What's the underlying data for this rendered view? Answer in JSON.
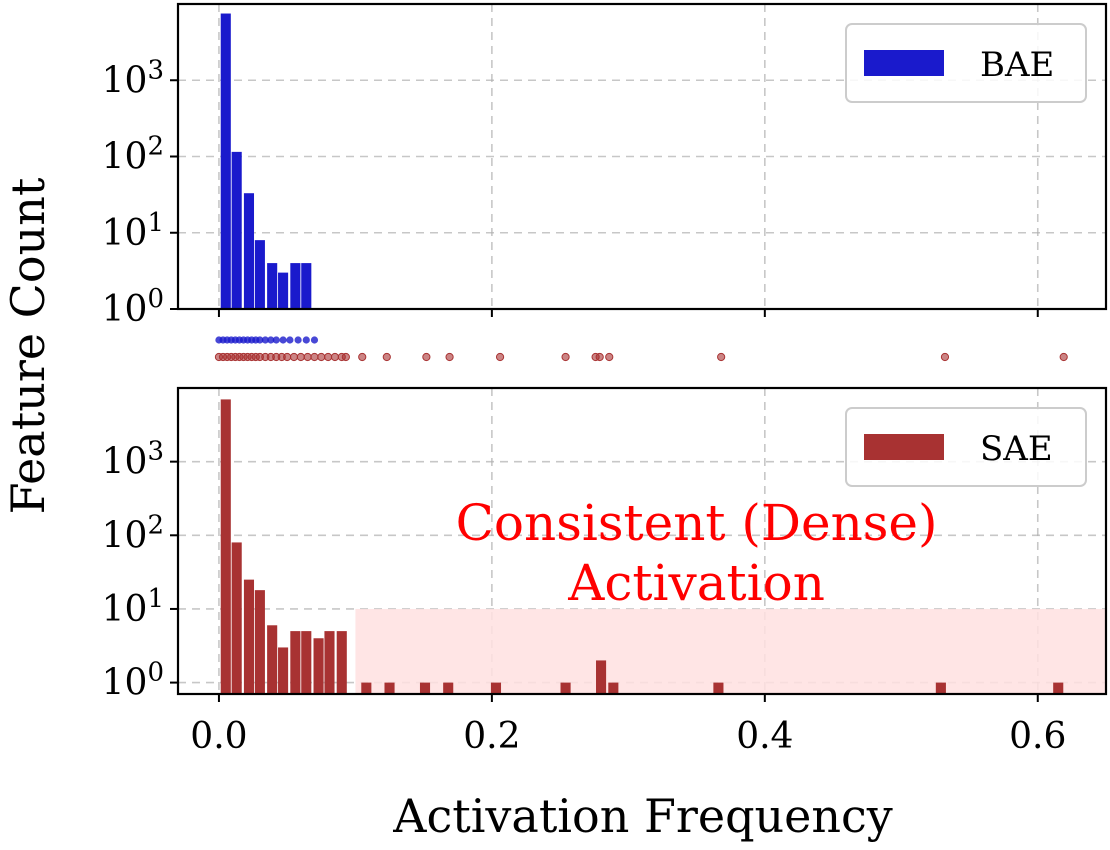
{
  "chart_data": {
    "type": "bar",
    "ylabel": "Feature Count",
    "xlabel": "Activation Frequency",
    "x_ticks": [
      0.0,
      0.2,
      0.4,
      0.6
    ],
    "x_tick_labels": [
      "0.0",
      "0.2",
      "0.4",
      "0.6"
    ],
    "xlim": [
      -0.03,
      0.65
    ],
    "y_scale": "log",
    "y_tick_exponents": [
      0,
      1,
      2,
      3
    ],
    "y_tick_base": "10",
    "bin_width": 0.0085,
    "colors": {
      "bae": "#1a1acc",
      "sae": "#a83232",
      "annotation": "#ff0000",
      "shade": "#ffe0e0"
    },
    "panels": [
      {
        "name": "bae",
        "legend": "BAE",
        "color_key": "bae",
        "ylim": [
          1,
          10000
        ],
        "bars": [
          {
            "x": 0.005,
            "count": 7500
          },
          {
            "x": 0.013,
            "count": 115
          },
          {
            "x": 0.022,
            "count": 33
          },
          {
            "x": 0.03,
            "count": 8
          },
          {
            "x": 0.039,
            "count": 4
          },
          {
            "x": 0.047,
            "count": 3
          },
          {
            "x": 0.056,
            "count": 4
          },
          {
            "x": 0.064,
            "count": 4
          }
        ]
      },
      {
        "name": "sae",
        "legend": "SAE",
        "color_key": "sae",
        "ylim": [
          0.7,
          10000
        ],
        "bars": [
          {
            "x": 0.005,
            "count": 7000
          },
          {
            "x": 0.013,
            "count": 80
          },
          {
            "x": 0.022,
            "count": 25
          },
          {
            "x": 0.03,
            "count": 18
          },
          {
            "x": 0.039,
            "count": 6
          },
          {
            "x": 0.047,
            "count": 3
          },
          {
            "x": 0.056,
            "count": 5
          },
          {
            "x": 0.064,
            "count": 5
          },
          {
            "x": 0.073,
            "count": 4
          },
          {
            "x": 0.081,
            "count": 5
          },
          {
            "x": 0.09,
            "count": 5
          },
          {
            "x": 0.108,
            "count": 1
          },
          {
            "x": 0.125,
            "count": 1
          },
          {
            "x": 0.151,
            "count": 1
          },
          {
            "x": 0.168,
            "count": 1
          },
          {
            "x": 0.203,
            "count": 1
          },
          {
            "x": 0.254,
            "count": 1
          },
          {
            "x": 0.28,
            "count": 2
          },
          {
            "x": 0.289,
            "count": 1
          },
          {
            "x": 0.366,
            "count": 1
          },
          {
            "x": 0.529,
            "count": 1
          },
          {
            "x": 0.615,
            "count": 1
          }
        ],
        "shaded_region": {
          "x": [
            0.1,
            0.65
          ],
          "y": [
            0.7,
            10
          ]
        },
        "annotation": {
          "lines": [
            "Consistent (Dense)",
            "Activation"
          ],
          "x": 0.35
        }
      }
    ],
    "strip": {
      "bae_points": [
        0.0,
        0.003,
        0.006,
        0.009,
        0.012,
        0.015,
        0.018,
        0.021,
        0.024,
        0.027,
        0.03,
        0.034,
        0.038,
        0.042,
        0.047,
        0.052,
        0.058,
        0.064,
        0.07
      ],
      "sae_points": [
        0.0,
        0.003,
        0.006,
        0.009,
        0.012,
        0.015,
        0.018,
        0.021,
        0.024,
        0.027,
        0.03,
        0.034,
        0.038,
        0.042,
        0.046,
        0.05,
        0.055,
        0.06,
        0.065,
        0.07,
        0.075,
        0.08,
        0.085,
        0.09,
        0.093,
        0.105,
        0.123,
        0.152,
        0.169,
        0.206,
        0.254,
        0.276,
        0.279,
        0.286,
        0.368,
        0.532,
        0.619
      ]
    }
  }
}
